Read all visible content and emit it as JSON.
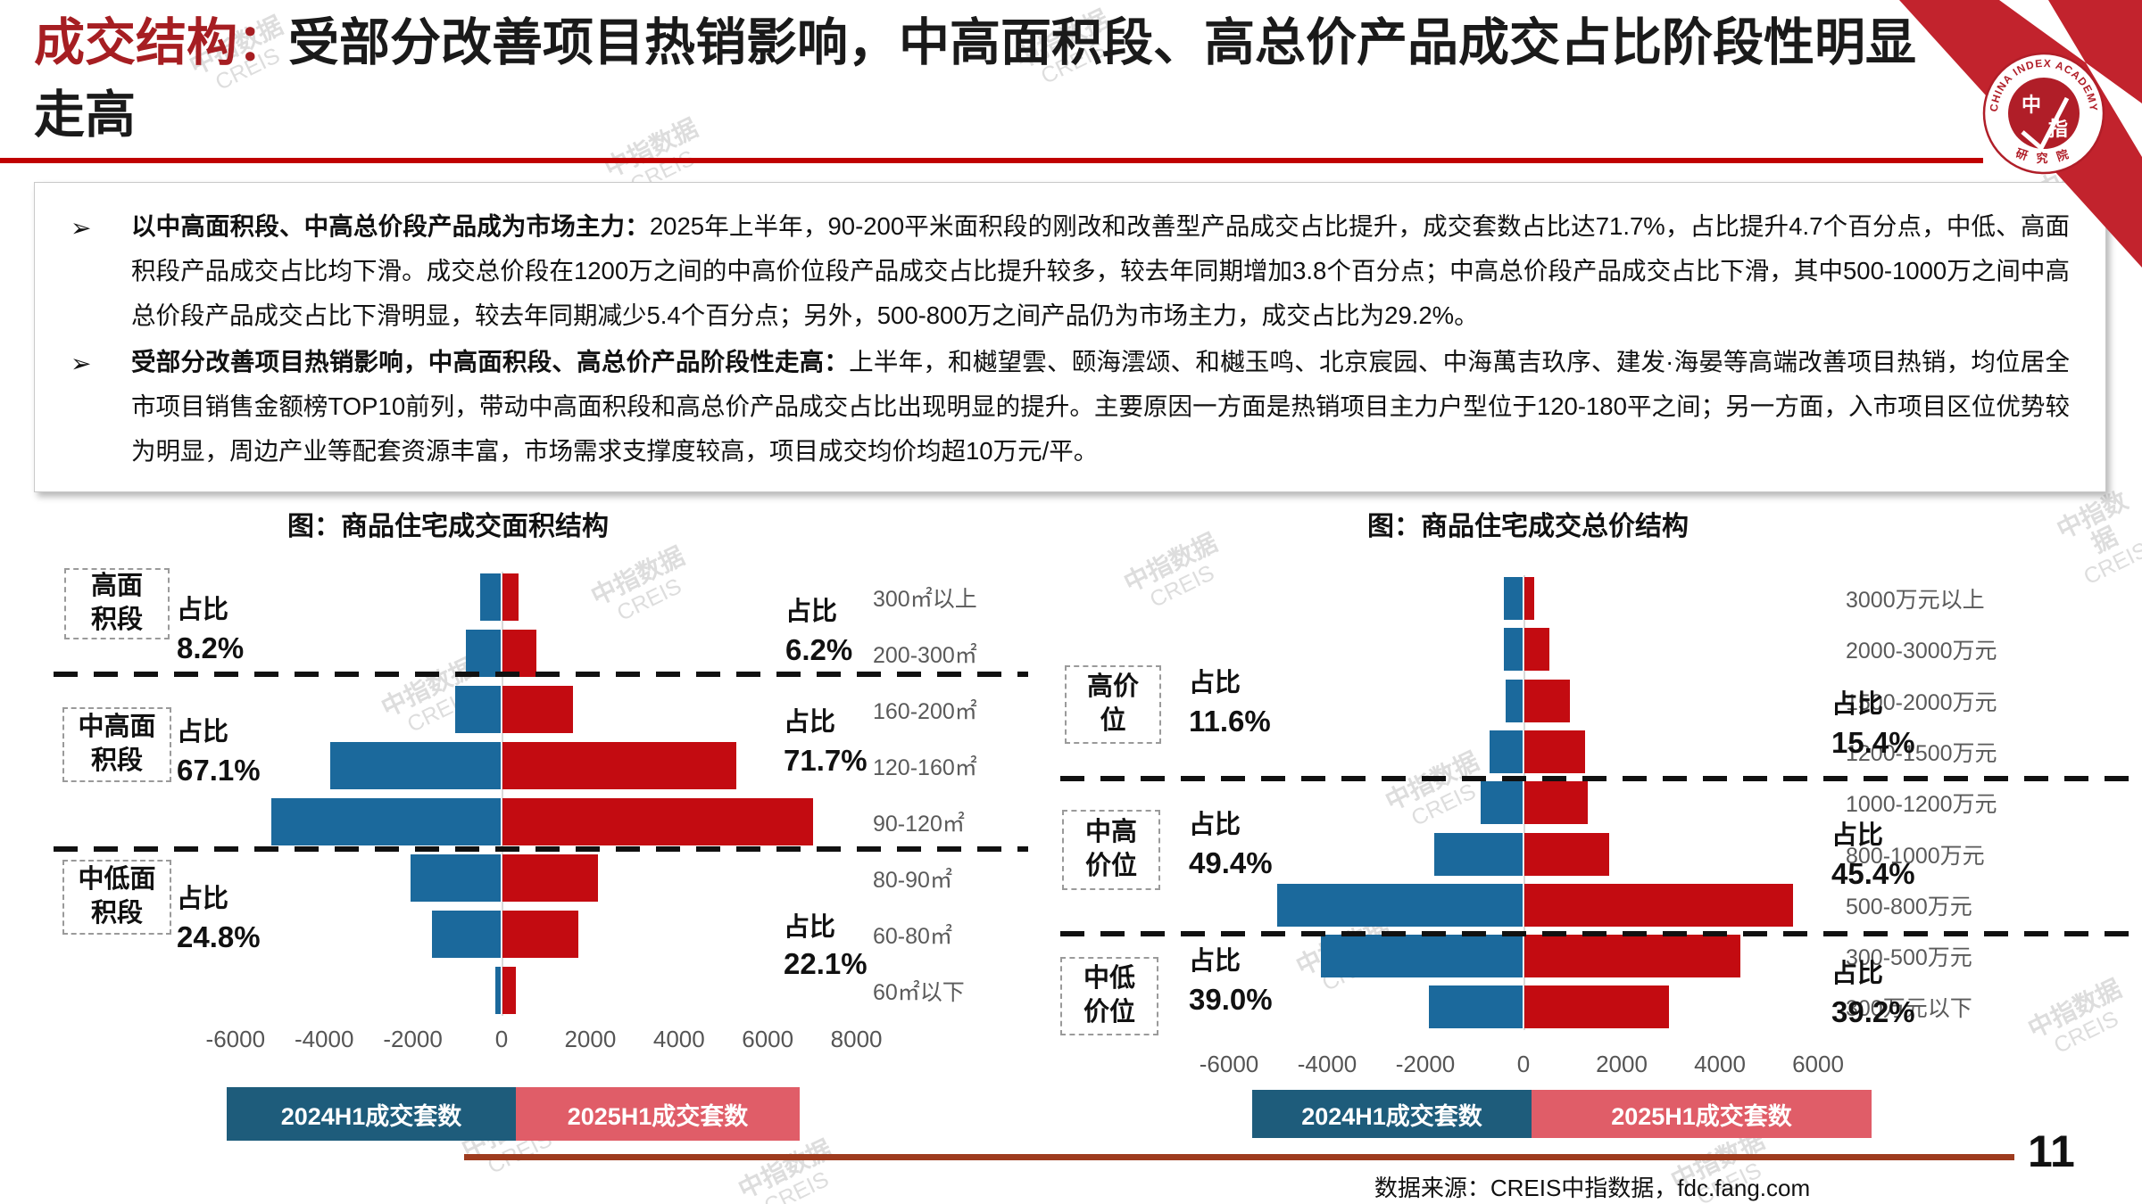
{
  "header": {
    "title_prefix": "成交结构：",
    "title_rest": "受部分改善项目热销影响，中高面积段、高总价产品成交占比阶段性明显走高"
  },
  "logo": {
    "arc_top": "CHINA INDEX ACADEMY",
    "arc_bottom": "研 究 院",
    "char_top": "中",
    "char_bottom": "指"
  },
  "bullets": [
    {
      "marker": "➢",
      "lead": "以中高面积段、中高总价段产品成为市场主力：",
      "body": "2025年上半年，90-200平米面积段的刚改和改善型产品成交占比提升，成交套数占比达71.7%，占比提升4.7个百分点，中低、高面积段产品成交占比均下滑。成交总价段在1200万之间的中高价位段产品成交占比提升较多，较去年同期增加3.8个百分点；中高总价段产品成交占比下滑，其中500-1000万之间中高总价段产品成交占比下滑明显，较去年同期减少5.4个百分点；另外，500-800万之间产品仍为市场主力，成交占比为29.2%。"
    },
    {
      "marker": "➢",
      "lead": "受部分改善项目热销影响，中高面积段、高总价产品阶段性走高：",
      "body": "上半年，和樾望雲、颐海澐颂、和樾玉鸣、北京宸园、中海萬吉玖序、建发·海晏等高端改善项目热销，均位居全市项目销售金额榜TOP10前列，带动中高面积段和高总价产品成交占比出现明显的提升。主要原因一方面是热销项目主力户型位于120-180平之间；另一方面，入市项目区位优势较为明显，周边产业等配套资源丰富，市场需求支撑度较高，项目成交均价均超10万元/平。"
    }
  ],
  "chart_data": [
    {
      "type": "bar",
      "variant": "tornado",
      "title": "图：商品住宅成交面积结构",
      "unit": "套数",
      "categories": [
        "300㎡以上",
        "200-300㎡",
        "160-200㎡",
        "120-160㎡",
        "90-120㎡",
        "80-90㎡",
        "60-80㎡",
        "60㎡以下"
      ],
      "series": [
        {
          "name": "2024H1成交套数",
          "direction": "left",
          "color": "#1B699C",
          "values": [
            460,
            790,
            1030,
            3840,
            5170,
            2030,
            1550,
            120
          ]
        },
        {
          "name": "2025H1成交套数",
          "direction": "right",
          "color": "#C30B11",
          "values": [
            370,
            770,
            1580,
            5270,
            7000,
            2150,
            1720,
            300
          ]
        }
      ],
      "x_ticks": [
        -6000,
        -4000,
        -2000,
        0,
        2000,
        4000,
        6000,
        8000
      ],
      "xlim": [
        -6000,
        8000
      ],
      "share_label": "占比",
      "segments": [
        {
          "label": "高面\n积段",
          "rows": [
            0,
            1
          ],
          "share_2024": "8.2%",
          "share_2025": "6.2%"
        },
        {
          "label": "中高面\n积段",
          "rows": [
            2,
            4
          ],
          "share_2024": "67.1%",
          "share_2025": "71.7%"
        },
        {
          "label": "中低面\n积段",
          "rows": [
            5,
            7
          ],
          "share_2024": "24.8%",
          "share_2025": "22.1%"
        }
      ]
    },
    {
      "type": "bar",
      "variant": "tornado",
      "title": "图：商品住宅成交总价结构",
      "unit": "套数",
      "categories": [
        "3000万元以上",
        "2000-3000万元",
        "1500-2000万元",
        "1200-1500万元",
        "1000-1200万元",
        "800-1000万元",
        "500-800万元",
        "300-500万元",
        "300万元以下"
      ],
      "series": [
        {
          "name": "2024H1成交套数",
          "direction": "left",
          "color": "#1B699C",
          "values": [
            380,
            380,
            350,
            670,
            860,
            1800,
            5000,
            4100,
            1900
          ]
        },
        {
          "name": "2025H1成交套数",
          "direction": "right",
          "color": "#C30B11",
          "values": [
            200,
            510,
            930,
            1240,
            1290,
            1720,
            5480,
            4400,
            2950
          ]
        }
      ],
      "x_ticks": [
        -6000,
        -4000,
        -2000,
        0,
        2000,
        4000,
        6000
      ],
      "xlim": [
        -6000,
        6000
      ],
      "share_label": "占比",
      "segments": [
        {
          "label": "高价\n位",
          "rows": [
            0,
            3
          ],
          "share_2024": "11.6%",
          "share_2025": "15.4%"
        },
        {
          "label": "中高\n价位",
          "rows": [
            4,
            6
          ],
          "share_2024": "49.4%",
          "share_2025": "45.4%"
        },
        {
          "label": "中低\n价位",
          "rows": [
            7,
            8
          ],
          "share_2024": "39.0%",
          "share_2025": "39.2%"
        }
      ]
    }
  ],
  "legend": {
    "y2024": "2024H1成交套数",
    "y2025": "2025H1成交套数"
  },
  "footer": {
    "source": "数据来源：CREIS中指数据，fdc.fang.com",
    "page": "11"
  },
  "watermark": {
    "line1": "中指数据",
    "line2": "CREIS"
  },
  "colors": {
    "title_accent": "#A61E22",
    "underline": "#C00000",
    "bar_2024": "#1B699C",
    "bar_2025": "#C30B11",
    "legend_2024": "#1E5C7B",
    "legend_2025": "#E05D68",
    "footer_line": "#9E3B1E"
  }
}
